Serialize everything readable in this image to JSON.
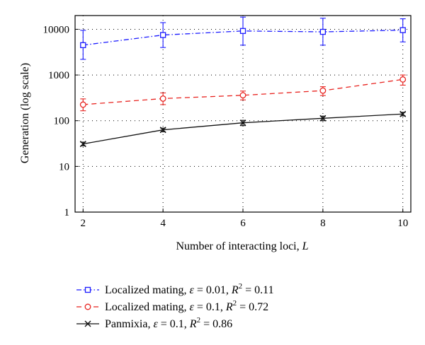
{
  "chart_data": {
    "type": "line",
    "title": "",
    "xlabel_prefix": "Number of interacting loci, ",
    "xlabel_var": "L",
    "ylabel": "Generation (log scale)",
    "x": [
      2,
      4,
      6,
      8,
      10
    ],
    "xlim": [
      1.8,
      10.2
    ],
    "ylim": [
      1,
      20000
    ],
    "yscale": "log",
    "x_ticks": [
      2,
      4,
      6,
      8,
      10
    ],
    "y_ticks": [
      1,
      10,
      100,
      1000,
      10000
    ],
    "grid": true,
    "legend_position": "below",
    "series": [
      {
        "name": "Localized mating, ε = 0.01, R2 = 0.11",
        "legend_prefix": "Localized mating, ",
        "legend_eps": "ε",
        "legend_eps_value": " = 0.01, ",
        "legend_r": "R",
        "legend_r_sup": "2",
        "legend_r_value": " = 0.11",
        "values": [
          4500,
          7500,
          9200,
          8800,
          9600
        ],
        "err_low": [
          2200,
          4000,
          4500,
          4500,
          5300
        ],
        "err_high": [
          9500,
          14000,
          18500,
          17500,
          17000
        ],
        "color": "#1a1aff",
        "line_style": "dashdot",
        "marker": "square"
      },
      {
        "name": "Localized mating, ε = 0.1, R2 = 0.72",
        "legend_prefix": "Localized mating, ",
        "legend_eps": "ε",
        "legend_eps_value": " = 0.1, ",
        "legend_r": "R",
        "legend_r_sup": "2",
        "legend_r_value": " = 0.72",
        "values": [
          225,
          305,
          360,
          455,
          800
        ],
        "err_low": [
          165,
          225,
          285,
          355,
          600
        ],
        "err_high": [
          300,
          405,
          445,
          555,
          1000
        ],
        "color": "#e8231f",
        "line_style": "dashed",
        "marker": "circle"
      },
      {
        "name": "Panmixia, ε = 0.1, R2 = 0.86",
        "legend_prefix": "Panmixia, ",
        "legend_eps": "ε",
        "legend_eps_value": " = 0.1, ",
        "legend_r": "R",
        "legend_r_sup": "2",
        "legend_r_value": " = 0.86",
        "values": [
          31,
          63,
          90,
          113,
          140
        ],
        "err_low": [
          28,
          57,
          78,
          100,
          127
        ],
        "err_high": [
          34,
          69,
          102,
          126,
          153
        ],
        "color": "#111111",
        "line_style": "solid",
        "marker": "x"
      }
    ]
  }
}
